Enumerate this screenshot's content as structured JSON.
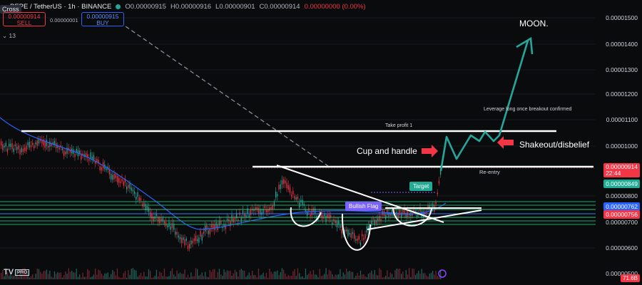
{
  "header": {
    "symbol": "PEPE / TetherUS · 1h · BINANCE",
    "open": "O0.00000915",
    "high": "H0.00000916",
    "low": "L0.00000901",
    "close": "C0.00000914",
    "change": "0.00000000 (0.00%)"
  },
  "crosshair_label": "Cross",
  "trade_panel": {
    "sell_price": "0.00000914",
    "sell_label": "SELL",
    "buy_price": "0.00000915",
    "buy_label": "BUY",
    "spread": "0.00000001"
  },
  "layers_label": "13",
  "price_axis": {
    "labels": [
      "0.00001500",
      "0.00001400",
      "0.00001300",
      "0.00001200",
      "0.00001100",
      "0.00001000",
      "0.00000800",
      "0.00000700",
      "0.00000600",
      "0.00000500"
    ],
    "last_price": "0.00000914",
    "countdown": "22:44",
    "tags": [
      {
        "text": "0.00000849",
        "color": "#22ab94"
      },
      {
        "text": "0.00000762",
        "color": "#2962ff"
      },
      {
        "text": "0.00000756",
        "color": "#f23645"
      }
    ],
    "volume_tag": "71.6B"
  },
  "annotations": {
    "moon": "MOON.",
    "take_profit": "Take profit 1",
    "leverage": "Leverage long once breakout confirmed",
    "cup_handle": "Cup and handle",
    "shakeout": "Shakeout/disbelief",
    "reentry": "Re-entry",
    "target": "Target",
    "bullish_flag": "Bullish Flag"
  },
  "logo": {
    "text": "TV",
    "badge": "PRO"
  },
  "colors": {
    "bg": "#0a0b0d",
    "up": "#26a69a",
    "down": "#f23645",
    "ma": "#2962ff",
    "target": "#22ab94",
    "projection": "#26a69a"
  }
}
